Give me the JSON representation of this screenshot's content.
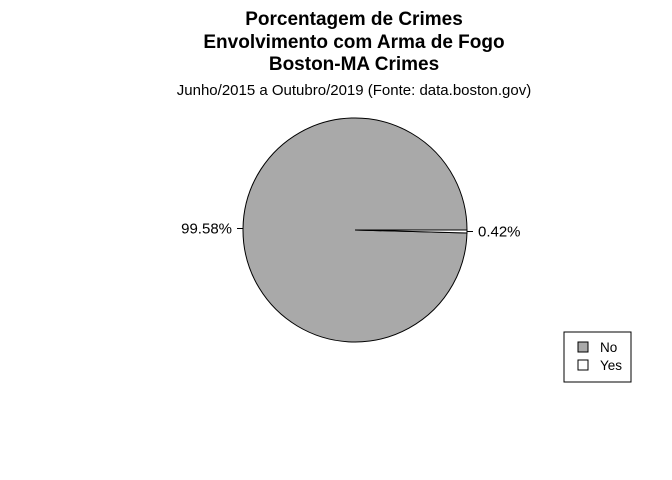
{
  "chart_data": {
    "type": "pie",
    "title": [
      "Porcentagem de Crimes",
      "Envolvimento com Arma de Fogo",
      "Boston-MA Crimes"
    ],
    "subtitle": "Junho/2015 a Outubro/2019 (Fonte: data.boston.gov)",
    "categories": [
      "No",
      "Yes"
    ],
    "values": [
      99.58,
      0.42
    ],
    "labels": [
      "99.58%",
      "0.42%"
    ],
    "colors": [
      "#a9a9a9",
      "#ffffff"
    ],
    "legend": {
      "placement": "bottom-right",
      "entries": [
        "No",
        "Yes"
      ]
    }
  }
}
